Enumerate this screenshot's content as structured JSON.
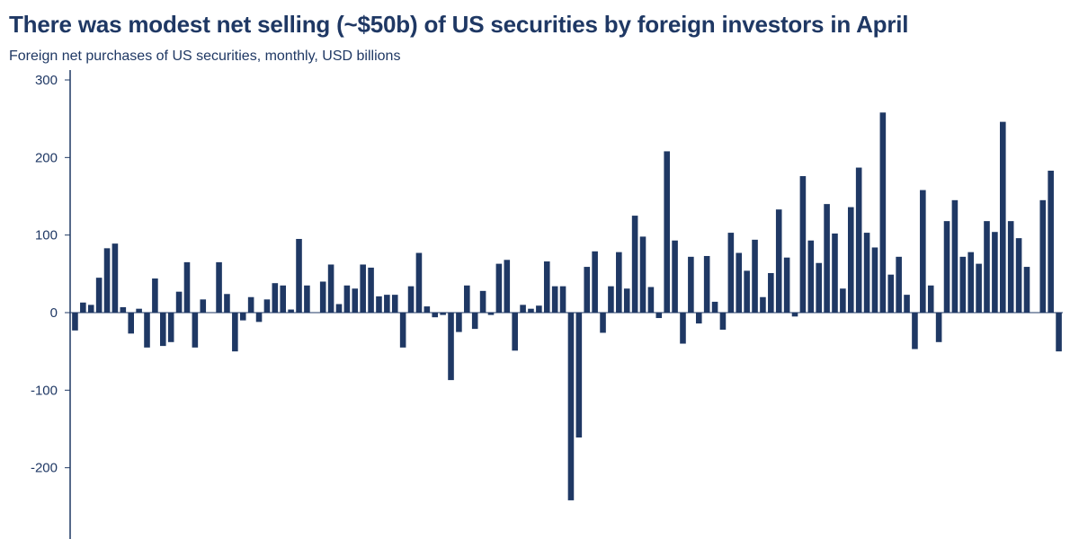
{
  "chart_data": {
    "type": "bar",
    "title": "There was modest net selling (~$50b) of US securities by foreign investors in April",
    "subtitle": "Foreign net purchases of US securities, monthly, USD billions",
    "xlabel": "",
    "ylabel": "",
    "ylim": [
      -290,
      305
    ],
    "yticks": [
      300,
      200,
      100,
      0,
      -100,
      -200
    ],
    "ytick_labels": [
      "300",
      "200",
      "100",
      "0",
      "-100",
      "-200"
    ],
    "grid": false,
    "legend": "none",
    "bar_color": "#1f3864",
    "axis_color": "#1f3864",
    "series": [
      {
        "values": [
          -23,
          13,
          10,
          45,
          83,
          89,
          7,
          -27,
          5,
          -45,
          44,
          -43,
          -38,
          27,
          65,
          -45,
          17,
          0,
          65,
          24,
          -50,
          -10,
          20,
          -12,
          17,
          38,
          35,
          4,
          95,
          35,
          0,
          40,
          62,
          11,
          35,
          31,
          62,
          58,
          21,
          23,
          23,
          -45,
          34,
          77,
          8,
          -6,
          -3,
          -87,
          -25,
          35,
          -21,
          28,
          -3,
          63,
          68,
          -49,
          10,
          5,
          9,
          66,
          34,
          34,
          -242,
          -161,
          59,
          79,
          -26,
          34,
          78,
          31,
          125,
          98,
          33,
          -7,
          208,
          93,
          -40,
          72,
          -14,
          73,
          14,
          -22,
          103,
          77,
          54,
          94,
          20,
          51,
          133,
          71,
          -5,
          176,
          93,
          64,
          140,
          102,
          31,
          136,
          187,
          103,
          84,
          258,
          49,
          72,
          23,
          -47,
          158,
          35,
          -38,
          118,
          145,
          72,
          78,
          63,
          118,
          104,
          246,
          118,
          96,
          59,
          0,
          145,
          183,
          -50
        ]
      }
    ]
  }
}
